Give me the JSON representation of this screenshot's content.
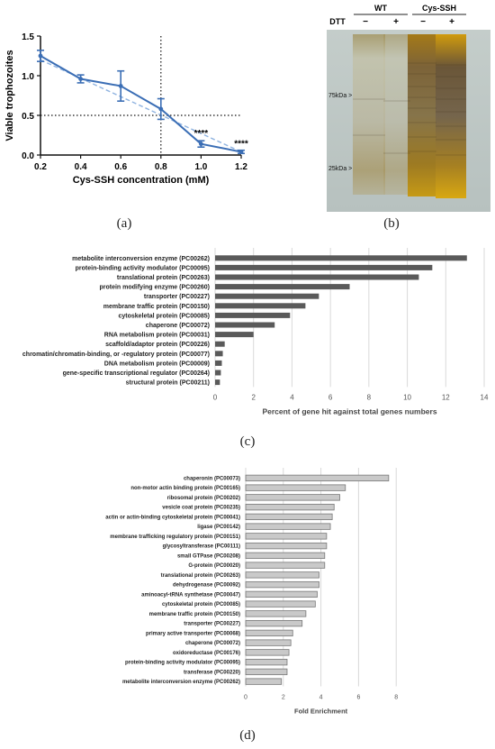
{
  "captions": {
    "a": "(a)",
    "b": "(b)",
    "c": "(c)",
    "d": "(d)"
  },
  "chart_data": [
    {
      "id": "a",
      "type": "line",
      "ylabel": "Viable trophozoites",
      "xlabel": "Cys-SSH concentration (mM)",
      "xlim": [
        0.2,
        1.2
      ],
      "ylim": [
        0.0,
        1.5
      ],
      "x_ticks": [
        0.2,
        0.4,
        0.6,
        0.8,
        1.0,
        1.2
      ],
      "x_tick_labels": [
        "0.2",
        "0.4",
        "0.6",
        "0.8",
        "1.0",
        "1.2"
      ],
      "y_ticks": [
        0.0,
        0.5,
        1.0,
        1.5
      ],
      "y_tick_labels": [
        "0.0",
        "0.5",
        "1.0",
        "1.5"
      ],
      "x": [
        0.2,
        0.4,
        0.6,
        0.8,
        1.0,
        1.2
      ],
      "series": [
        {
          "values": [
            1.25,
            0.96,
            0.87,
            0.58,
            0.14,
            0.04
          ],
          "error": [
            0.07,
            0.05,
            0.19,
            0.13,
            0.04,
            0.02
          ]
        }
      ],
      "fit_line": {
        "x": [
          0.2,
          1.2
        ],
        "y": [
          1.2,
          0.04
        ],
        "style": "dashed"
      },
      "reference_lines": {
        "vertical_x": 0.8,
        "horizontal_y": 0.5,
        "style": "dotted"
      },
      "annotations": [
        {
          "x": 1.0,
          "y": 0.24,
          "text": "****"
        },
        {
          "x": 1.2,
          "y": 0.11,
          "text": "****"
        }
      ],
      "colors": {
        "line": "#3b6eb5",
        "fit": "#8fb3e0",
        "ref": "#111111"
      }
    },
    {
      "id": "c",
      "type": "bar",
      "orientation": "horizontal",
      "xlabel": "Percent of gene hit against total genes numbers",
      "xlim": [
        0,
        14
      ],
      "x_ticks": [
        0,
        2,
        4,
        6,
        8,
        10,
        12,
        14
      ],
      "x_tick_labels": [
        "0",
        "2",
        "4",
        "6",
        "8",
        "10",
        "12",
        "14"
      ],
      "grid": true,
      "bar_color": "#5a5a5a",
      "categories": [
        "metabolite interconversion enzyme (PC00262)",
        "protein-binding activity modulator (PC00095)",
        "translational protein (PC00263)",
        "protein modifying enzyme (PC00260)",
        "transporter (PC00227)",
        "membrane traffic protein (PC00150)",
        "cytoskeletal protein (PC00085)",
        "chaperone (PC00072)",
        "RNA metabolism protein (PC00031)",
        "scaffold/adaptor protein (PC00226)",
        "chromatin/chromatin-binding, or -regulatory protein (PC00077)",
        "DNA metabolism protein (PC00009)",
        "gene-specific transcriptional regulator (PC00264)",
        "structural protein (PC00211)"
      ],
      "values": [
        13.1,
        11.3,
        10.6,
        7.0,
        5.4,
        4.7,
        3.9,
        3.1,
        2.0,
        0.5,
        0.4,
        0.35,
        0.3,
        0.25
      ]
    },
    {
      "id": "d",
      "type": "bar",
      "orientation": "horizontal",
      "xlabel": "Fold Enrichment",
      "xlim": [
        0,
        10
      ],
      "x_ticks": [
        0,
        2,
        4,
        6,
        8
      ],
      "x_tick_labels": [
        "0",
        "2",
        "4",
        "6",
        "8"
      ],
      "grid": true,
      "bar_color": "#c9c9c9",
      "bar_stroke": "#777777",
      "categories": [
        "chaperonin (PC00073)",
        "non-motor actin binding protein (PC00165)",
        "ribosomal protein (PC00202)",
        "vesicle coat protein (PC00235)",
        "actin or actin-binding cytoskeletal protein (PC00041)",
        "ligase (PC00142)",
        "membrane trafficking regulatory protein (PC00151)",
        "glycosyltransferase (PC00111)",
        "small GTPase (PC00208)",
        "G-protein (PC00020)",
        "translational protein (PC00263)",
        "dehydrogenase (PC00092)",
        "aminoacyl-tRNA synthetase (PC00047)",
        "cytoskeletal protein (PC00085)",
        "membrane traffic protein (PC00150)",
        "transporter (PC00227)",
        "primary active transporter (PC00068)",
        "chaperone (PC00072)",
        "oxidoreductase (PC00176)",
        "protein-binding activity modulator (PC00095)",
        "transferase (PC00220)",
        "metabolite interconversion enzyme (PC00262)"
      ],
      "values": [
        7.6,
        5.3,
        5.0,
        4.7,
        4.6,
        4.5,
        4.3,
        4.3,
        4.2,
        4.2,
        3.9,
        3.9,
        3.8,
        3.7,
        3.2,
        3.0,
        2.5,
        2.4,
        2.3,
        2.2,
        2.2,
        1.9
      ]
    }
  ],
  "gel": {
    "group_labels": [
      "WT",
      "Cys-SSH"
    ],
    "dtt_label": "DTT",
    "lane_labels": [
      "−",
      "+",
      "−",
      "+"
    ],
    "markers": [
      "75kDa >",
      "25kDa >"
    ]
  }
}
